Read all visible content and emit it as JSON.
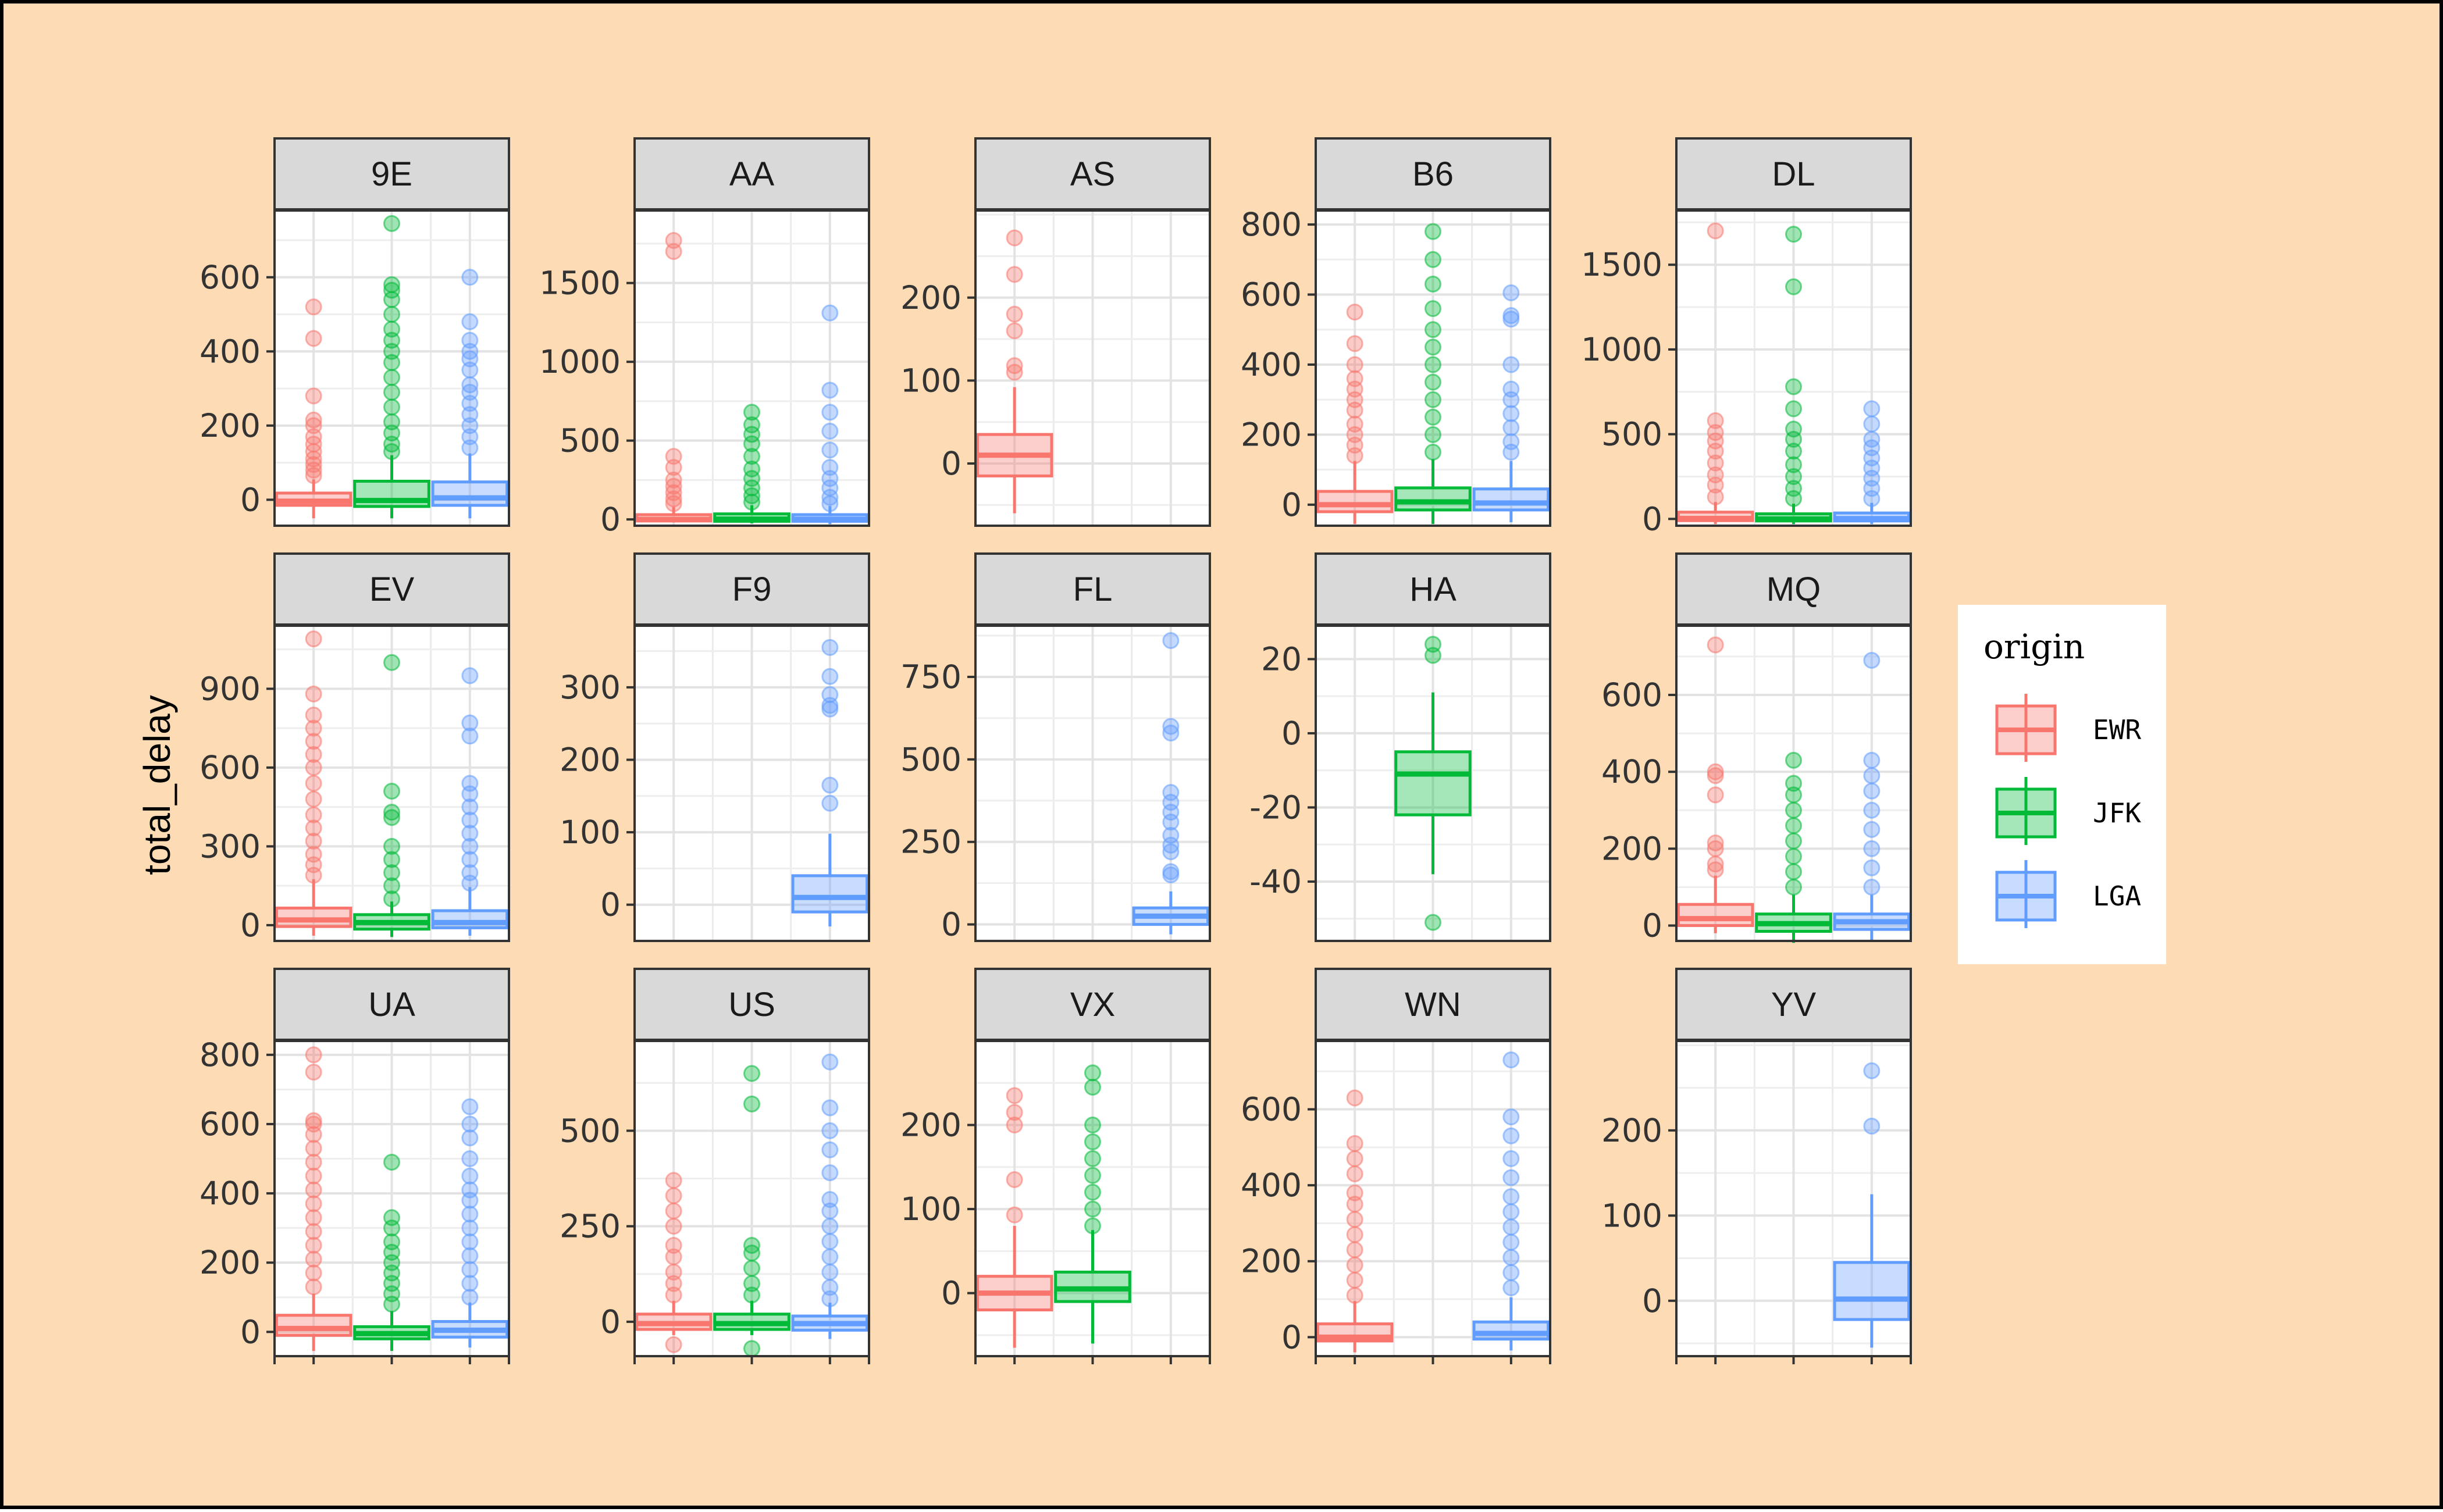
{
  "chart_data": {
    "type": "box",
    "facet_by": "carrier",
    "ylabel": "total_delay",
    "xlabel": "",
    "legend": {
      "title": "origin",
      "position": "right",
      "entries": [
        {
          "name": "EWR",
          "color": "#f8766d"
        },
        {
          "name": "JFK",
          "color": "#00ba38"
        },
        {
          "name": "LGA",
          "color": "#619cff"
        }
      ]
    },
    "x_categories": [
      "EWR",
      "JFK",
      "LGA"
    ],
    "grid": true,
    "scales": "free",
    "panels": [
      {
        "carrier": "9E",
        "ylim": [
          -70,
          780
        ],
        "yticks": [
          0,
          200,
          400,
          600
        ],
        "boxes": [
          {
            "origin": "EWR",
            "min": -50,
            "q1": -15,
            "median": -4,
            "q3": 18,
            "max": 55,
            "outliers": [
              65,
              80,
              95,
              110,
              130,
              150,
              170,
              200,
              215,
              280,
              435,
              520
            ]
          },
          {
            "origin": "JFK",
            "min": -50,
            "q1": -18,
            "median": -2,
            "q3": 50,
            "max": 120,
            "outliers": [
              130,
              150,
              180,
              210,
              250,
              290,
              330,
              370,
              400,
              430,
              460,
              500,
              540,
              565,
              580,
              745
            ]
          },
          {
            "origin": "LGA",
            "min": -50,
            "q1": -15,
            "median": 5,
            "q3": 48,
            "max": 125,
            "outliers": [
              140,
              170,
              200,
              230,
              260,
              290,
              310,
              350,
              380,
              400,
              430,
              480,
              600
            ]
          }
        ]
      },
      {
        "carrier": "AA",
        "ylim": [
          -40,
          1960
        ],
        "yticks": [
          0,
          500,
          1000,
          1500
        ],
        "boxes": [
          {
            "origin": "EWR",
            "min": -20,
            "q1": -10,
            "median": 0,
            "q3": 30,
            "max": 80,
            "outliers": [
              100,
              130,
              170,
              210,
              250,
              330,
              400,
              1700,
              1770
            ]
          },
          {
            "origin": "JFK",
            "min": -25,
            "q1": -12,
            "median": 2,
            "q3": 35,
            "max": 90,
            "outliers": [
              110,
              150,
              200,
              260,
              320,
              400,
              480,
              540,
              600,
              680
            ]
          },
          {
            "origin": "LGA",
            "min": -30,
            "q1": -12,
            "median": 1,
            "q3": 30,
            "max": 85,
            "outliers": [
              100,
              140,
              200,
              260,
              330,
              440,
              560,
              680,
              820,
              1310
            ]
          }
        ]
      },
      {
        "carrier": "AS",
        "ylim": [
          -75,
          305
        ],
        "yticks": [
          0,
          100,
          200
        ],
        "boxes": [
          {
            "origin": "EWR",
            "min": -60,
            "q1": -15,
            "median": 10,
            "q3": 35,
            "max": 92,
            "outliers": [
              110,
              118,
              160,
              180,
              228,
              272
            ]
          }
        ]
      },
      {
        "carrier": "B6",
        "ylim": [
          -60,
          840
        ],
        "yticks": [
          0,
          200,
          400,
          600,
          800
        ],
        "boxes": [
          {
            "origin": "EWR",
            "min": -55,
            "q1": -20,
            "median": 0,
            "q3": 38,
            "max": 125,
            "outliers": [
              140,
              170,
              200,
              230,
              270,
              300,
              330,
              360,
              400,
              460,
              550
            ]
          },
          {
            "origin": "JFK",
            "min": -55,
            "q1": -15,
            "median": 8,
            "q3": 48,
            "max": 130,
            "outliers": [
              150,
              200,
              250,
              300,
              350,
              400,
              450,
              500,
              560,
              630,
              700,
              780
            ]
          },
          {
            "origin": "LGA",
            "min": -50,
            "q1": -15,
            "median": 5,
            "q3": 45,
            "max": 125,
            "outliers": [
              150,
              180,
              220,
              260,
              300,
              330,
              400,
              530,
              540,
              605
            ]
          }
        ]
      },
      {
        "carrier": "DL",
        "ylim": [
          -40,
          1820
        ],
        "yticks": [
          0,
          500,
          1000,
          1500
        ],
        "boxes": [
          {
            "origin": "EWR",
            "min": -30,
            "q1": -10,
            "median": 3,
            "q3": 40,
            "max": 100,
            "outliers": [
              130,
              200,
              260,
              330,
              400,
              460,
              510,
              580,
              1700
            ]
          },
          {
            "origin": "JFK",
            "min": -30,
            "q1": -12,
            "median": 0,
            "q3": 30,
            "max": 90,
            "outliers": [
              120,
              180,
              250,
              320,
              400,
              470,
              530,
              650,
              780,
              1370,
              1680
            ]
          },
          {
            "origin": "LGA",
            "min": -30,
            "q1": -12,
            "median": 2,
            "q3": 35,
            "max": 95,
            "outliers": [
              120,
              180,
              240,
              300,
              360,
              420,
              470,
              560,
              650
            ]
          }
        ]
      },
      {
        "carrier": "EV",
        "ylim": [
          -60,
          1140
        ],
        "yticks": [
          0,
          300,
          600,
          900
        ],
        "boxes": [
          {
            "origin": "EWR",
            "min": -40,
            "q1": -5,
            "median": 20,
            "q3": 65,
            "max": 175,
            "outliers": [
              190,
              230,
              270,
              320,
              370,
              420,
              480,
              540,
              600,
              650,
              700,
              750,
              800,
              880,
              1090
            ]
          },
          {
            "origin": "JFK",
            "min": -45,
            "q1": -15,
            "median": 10,
            "q3": 40,
            "max": 90,
            "outliers": [
              100,
              150,
              200,
              250,
              300,
              410,
              430,
              510,
              1000
            ]
          },
          {
            "origin": "LGA",
            "min": -40,
            "q1": -10,
            "median": 10,
            "q3": 55,
            "max": 145,
            "outliers": [
              160,
              200,
              250,
              300,
              350,
              400,
              450,
              500,
              540,
              720,
              770,
              950
            ]
          }
        ]
      },
      {
        "carrier": "F9",
        "ylim": [
          -50,
          385
        ],
        "yticks": [
          0,
          100,
          200,
          300
        ],
        "boxes": [
          {
            "origin": "LGA",
            "min": -30,
            "q1": -10,
            "median": 10,
            "q3": 40,
            "max": 98,
            "outliers": [
              140,
              165,
              270,
              275,
              290,
              315,
              355
            ]
          }
        ]
      },
      {
        "carrier": "FL",
        "ylim": [
          -50,
          905
        ],
        "yticks": [
          0,
          250,
          500,
          750
        ],
        "boxes": [
          {
            "origin": "LGA",
            "min": -30,
            "q1": 0,
            "median": 25,
            "q3": 50,
            "max": 100,
            "outliers": [
              150,
              160,
              220,
              240,
              270,
              310,
              340,
              370,
              400,
              580,
              600,
              860
            ]
          }
        ]
      },
      {
        "carrier": "HA",
        "ylim": [
          -56,
          29
        ],
        "yticks": [
          -40,
          -20,
          0,
          20
        ],
        "boxes": [
          {
            "origin": "JFK",
            "min": -38,
            "q1": -22,
            "median": -11,
            "q3": -5,
            "max": 11,
            "outliers": [
              -51,
              21,
              24
            ]
          }
        ]
      },
      {
        "carrier": "MQ",
        "ylim": [
          -40,
          780
        ],
        "yticks": [
          0,
          200,
          400,
          600
        ],
        "boxes": [
          {
            "origin": "EWR",
            "min": -20,
            "q1": 0,
            "median": 18,
            "q3": 55,
            "max": 130,
            "outliers": [
              145,
              160,
              200,
              215,
              340,
              390,
              400,
              730
            ]
          },
          {
            "origin": "JFK",
            "min": -45,
            "q1": -15,
            "median": 5,
            "q3": 30,
            "max": 80,
            "outliers": [
              100,
              140,
              180,
              220,
              260,
              300,
              340,
              370,
              430
            ]
          },
          {
            "origin": "LGA",
            "min": -40,
            "q1": -10,
            "median": 10,
            "q3": 30,
            "max": 80,
            "outliers": [
              100,
              150,
              200,
              250,
              300,
              350,
              390,
              430,
              690
            ]
          }
        ]
      },
      {
        "carrier": "UA",
        "ylim": [
          -70,
          840
        ],
        "yticks": [
          0,
          200,
          400,
          600,
          800
        ],
        "boxes": [
          {
            "origin": "EWR",
            "min": -55,
            "q1": -10,
            "median": 10,
            "q3": 48,
            "max": 110,
            "outliers": [
              130,
              170,
              210,
              250,
              290,
              330,
              370,
              410,
              450,
              490,
              530,
              570,
              600,
              610,
              750,
              800
            ]
          },
          {
            "origin": "JFK",
            "min": -55,
            "q1": -20,
            "median": -5,
            "q3": 15,
            "max": 60,
            "outliers": [
              80,
              110,
              140,
              170,
              200,
              230,
              260,
              300,
              330,
              490
            ]
          },
          {
            "origin": "LGA",
            "min": -45,
            "q1": -15,
            "median": 5,
            "q3": 30,
            "max": 85,
            "outliers": [
              100,
              140,
              180,
              220,
              260,
              300,
              340,
              380,
              410,
              450,
              500,
              560,
              600,
              650
            ]
          }
        ]
      },
      {
        "carrier": "US",
        "ylim": [
          -90,
          735
        ],
        "yticks": [
          0,
          250,
          500
        ],
        "boxes": [
          {
            "origin": "EWR",
            "min": -35,
            "q1": -20,
            "median": -5,
            "q3": 20,
            "max": 55,
            "outliers": [
              -60,
              70,
              100,
              130,
              170,
              200,
              250,
              290,
              330,
              370
            ]
          },
          {
            "origin": "JFK",
            "min": -35,
            "q1": -20,
            "median": -5,
            "q3": 20,
            "max": 55,
            "outliers": [
              -70,
              70,
              100,
              140,
              180,
              200,
              570,
              650
            ]
          },
          {
            "origin": "LGA",
            "min": -45,
            "q1": -22,
            "median": -5,
            "q3": 15,
            "max": 50,
            "outliers": [
              60,
              90,
              130,
              170,
              210,
              250,
              290,
              320,
              390,
              450,
              500,
              560,
              680
            ]
          }
        ]
      },
      {
        "carrier": "VX",
        "ylim": [
          -75,
          300
        ],
        "yticks": [
          0,
          100,
          200
        ],
        "boxes": [
          {
            "origin": "EWR",
            "min": -65,
            "q1": -20,
            "median": 0,
            "q3": 20,
            "max": 80,
            "outliers": [
              93,
              135,
              200,
              215,
              235
            ]
          },
          {
            "origin": "JFK",
            "min": -60,
            "q1": -10,
            "median": 5,
            "q3": 25,
            "max": 75,
            "outliers": [
              80,
              100,
              120,
              140,
              160,
              180,
              200,
              245,
              262
            ]
          }
        ]
      },
      {
        "carrier": "WN",
        "ylim": [
          -50,
          780
        ],
        "yticks": [
          0,
          200,
          400,
          600
        ],
        "boxes": [
          {
            "origin": "EWR",
            "min": -40,
            "q1": -10,
            "median": 0,
            "q3": 35,
            "max": 95,
            "outliers": [
              110,
              150,
              190,
              230,
              270,
              310,
              350,
              380,
              430,
              470,
              510,
              630
            ]
          },
          {
            "origin": "LGA",
            "min": -35,
            "q1": -5,
            "median": 10,
            "q3": 40,
            "max": 105,
            "outliers": [
              130,
              170,
              210,
              250,
              290,
              330,
              370,
              420,
              470,
              530,
              580,
              730
            ]
          }
        ]
      },
      {
        "carrier": "YV",
        "ylim": [
          -65,
          305
        ],
        "yticks": [
          0,
          100,
          200
        ],
        "boxes": [
          {
            "origin": "LGA",
            "min": -55,
            "q1": -22,
            "median": 2,
            "q3": 45,
            "max": 125,
            "outliers": [
              205,
              270
            ]
          }
        ]
      }
    ]
  }
}
